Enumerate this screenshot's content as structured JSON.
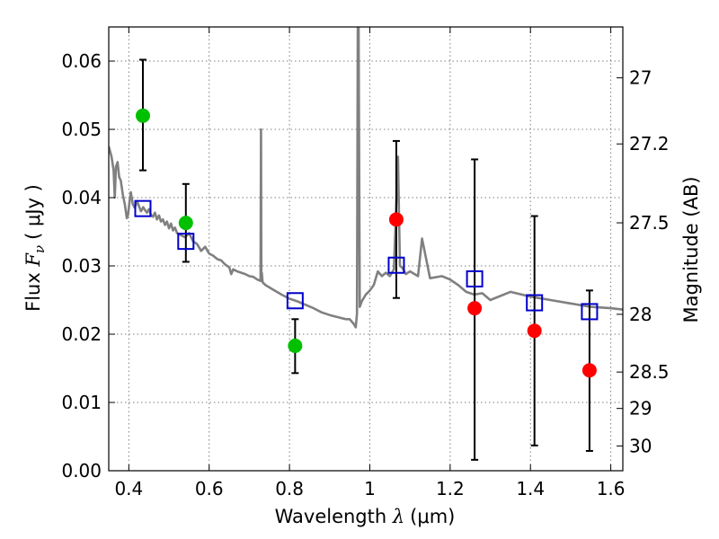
{
  "chart_data": {
    "type": "scatter",
    "xlabel": "Wavelength λ (μm)",
    "ylabel": "Flux Fν (μJy)",
    "ylabel_parts": {
      "prefix": "Flux ",
      "symbol": "F",
      "subscript": "ν",
      "unit": "( μJy )"
    },
    "xlabel_parts": {
      "prefix": "Wavelength ",
      "symbol": "λ",
      "unit": "(μm)"
    },
    "y2label": "Magnitude (AB)",
    "xlim": [
      0.35,
      1.63
    ],
    "ylim": [
      0.0,
      0.065
    ],
    "grid": true,
    "x_ticks": [
      {
        "value": 0.4,
        "label": "0.4"
      },
      {
        "value": 0.6,
        "label": "0.6"
      },
      {
        "value": 0.8,
        "label": "0.8"
      },
      {
        "value": 1.0,
        "label": "1"
      },
      {
        "value": 1.2,
        "label": "1.2"
      },
      {
        "value": 1.4,
        "label": "1.4"
      },
      {
        "value": 1.6,
        "label": "1.6"
      }
    ],
    "y_ticks": [
      {
        "value": 0.0,
        "label": "0.00"
      },
      {
        "value": 0.01,
        "label": "0.01"
      },
      {
        "value": 0.02,
        "label": "0.02"
      },
      {
        "value": 0.03,
        "label": "0.03"
      },
      {
        "value": 0.04,
        "label": "0.04"
      },
      {
        "value": 0.05,
        "label": "0.05"
      },
      {
        "value": 0.06,
        "label": "0.06"
      }
    ],
    "y2_ticks": [
      {
        "value": 27,
        "label": "27"
      },
      {
        "value": 27.2,
        "label": "27.2"
      },
      {
        "value": 27.5,
        "label": "27.5"
      },
      {
        "value": 28,
        "label": "28"
      },
      {
        "value": 28.5,
        "label": "28.5"
      },
      {
        "value": 29,
        "label": "29"
      },
      {
        "value": 30,
        "label": "30"
      }
    ],
    "colors": {
      "spectrum": "#808080",
      "green_points": "#00c000",
      "red_points": "#ff0000",
      "model_squares": "#0000cc",
      "errorbars": "#000000"
    },
    "series": [
      {
        "kind": "spectrum",
        "x": [
          0.35,
          0.357,
          0.362,
          0.365,
          0.368,
          0.372,
          0.376,
          0.38,
          0.385,
          0.39,
          0.395,
          0.398,
          0.402,
          0.405,
          0.41,
          0.415,
          0.42,
          0.425,
          0.43,
          0.436,
          0.44,
          0.445,
          0.45,
          0.455,
          0.46,
          0.465,
          0.47,
          0.475,
          0.48,
          0.485,
          0.49,
          0.495,
          0.5,
          0.505,
          0.51,
          0.515,
          0.52,
          0.53,
          0.54,
          0.55,
          0.56,
          0.57,
          0.58,
          0.59,
          0.6,
          0.61,
          0.62,
          0.63,
          0.64,
          0.65,
          0.655,
          0.66,
          0.67,
          0.68,
          0.69,
          0.7,
          0.71,
          0.72,
          0.728,
          0.729,
          0.73,
          0.731,
          0.733,
          0.74,
          0.76,
          0.78,
          0.8,
          0.82,
          0.84,
          0.86,
          0.88,
          0.9,
          0.92,
          0.94,
          0.95,
          0.96,
          0.965,
          0.968,
          0.97,
          0.972,
          0.975,
          0.98,
          0.99,
          1.0,
          1.01,
          1.02,
          1.03,
          1.04,
          1.05,
          1.06,
          1.07,
          1.075,
          1.08,
          1.09,
          1.1,
          1.12,
          1.13,
          1.15,
          1.18,
          1.2,
          1.22,
          1.24,
          1.26,
          1.28,
          1.3,
          1.35,
          1.4,
          1.45,
          1.5,
          1.55,
          1.6,
          1.63
        ],
        "y": [
          0.0475,
          0.046,
          0.044,
          0.04,
          0.0445,
          0.0452,
          0.043,
          0.0425,
          0.0405,
          0.039,
          0.037,
          0.0375,
          0.0395,
          0.0408,
          0.039,
          0.0385,
          0.0395,
          0.0388,
          0.038,
          0.0386,
          0.0382,
          0.0378,
          0.0383,
          0.0375,
          0.0372,
          0.0378,
          0.0368,
          0.0374,
          0.0365,
          0.0368,
          0.036,
          0.0365,
          0.0355,
          0.0362,
          0.0352,
          0.0356,
          0.0348,
          0.0345,
          0.0342,
          0.0348,
          0.0336,
          0.0332,
          0.0322,
          0.0328,
          0.0318,
          0.0315,
          0.031,
          0.0308,
          0.0302,
          0.0298,
          0.0288,
          0.0295,
          0.0292,
          0.029,
          0.0288,
          0.0285,
          0.0284,
          0.028,
          0.0278,
          0.05,
          0.0278,
          0.029,
          0.0276,
          0.0272,
          0.0265,
          0.0258,
          0.0252,
          0.0248,
          0.0243,
          0.0238,
          0.0232,
          0.0228,
          0.0225,
          0.0222,
          0.0222,
          0.0215,
          0.021,
          0.023,
          0.065,
          0.065,
          0.024,
          0.0248,
          0.0258,
          0.0264,
          0.0272,
          0.0292,
          0.0285,
          0.029,
          0.0285,
          0.0295,
          0.046,
          0.03,
          0.0298,
          0.0288,
          0.0292,
          0.0285,
          0.034,
          0.0282,
          0.0285,
          0.028,
          0.0272,
          0.0262,
          0.0258,
          0.026,
          0.025,
          0.0262,
          0.0255,
          0.025,
          0.0245,
          0.024,
          0.0238,
          0.0236
        ]
      },
      {
        "kind": "observed-green",
        "points": [
          {
            "x": 0.435,
            "y": 0.052,
            "yerr_low": 0.044,
            "yerr_high": 0.0602
          },
          {
            "x": 0.542,
            "y": 0.0363,
            "yerr_low": 0.0306,
            "yerr_high": 0.042
          },
          {
            "x": 0.814,
            "y": 0.0183,
            "yerr_low": 0.0143,
            "yerr_high": 0.0222
          }
        ]
      },
      {
        "kind": "observed-red",
        "points": [
          {
            "x": 1.066,
            "y": 0.0368,
            "yerr_low": 0.0253,
            "yerr_high": 0.0483
          },
          {
            "x": 1.261,
            "y": 0.0238,
            "yerr_low": 0.0016,
            "yerr_high": 0.0456
          },
          {
            "x": 1.41,
            "y": 0.0205,
            "yerr_low": 0.0037,
            "yerr_high": 0.0373
          },
          {
            "x": 1.547,
            "y": 0.0147,
            "yerr_low": 0.0029,
            "yerr_high": 0.0264
          }
        ]
      },
      {
        "kind": "model-squares",
        "points": [
          {
            "x": 0.435,
            "y": 0.0384
          },
          {
            "x": 0.542,
            "y": 0.0336
          },
          {
            "x": 0.814,
            "y": 0.0249
          },
          {
            "x": 1.066,
            "y": 0.0301
          },
          {
            "x": 1.261,
            "y": 0.0281
          },
          {
            "x": 1.41,
            "y": 0.0246
          },
          {
            "x": 1.547,
            "y": 0.0233
          }
        ]
      }
    ]
  }
}
